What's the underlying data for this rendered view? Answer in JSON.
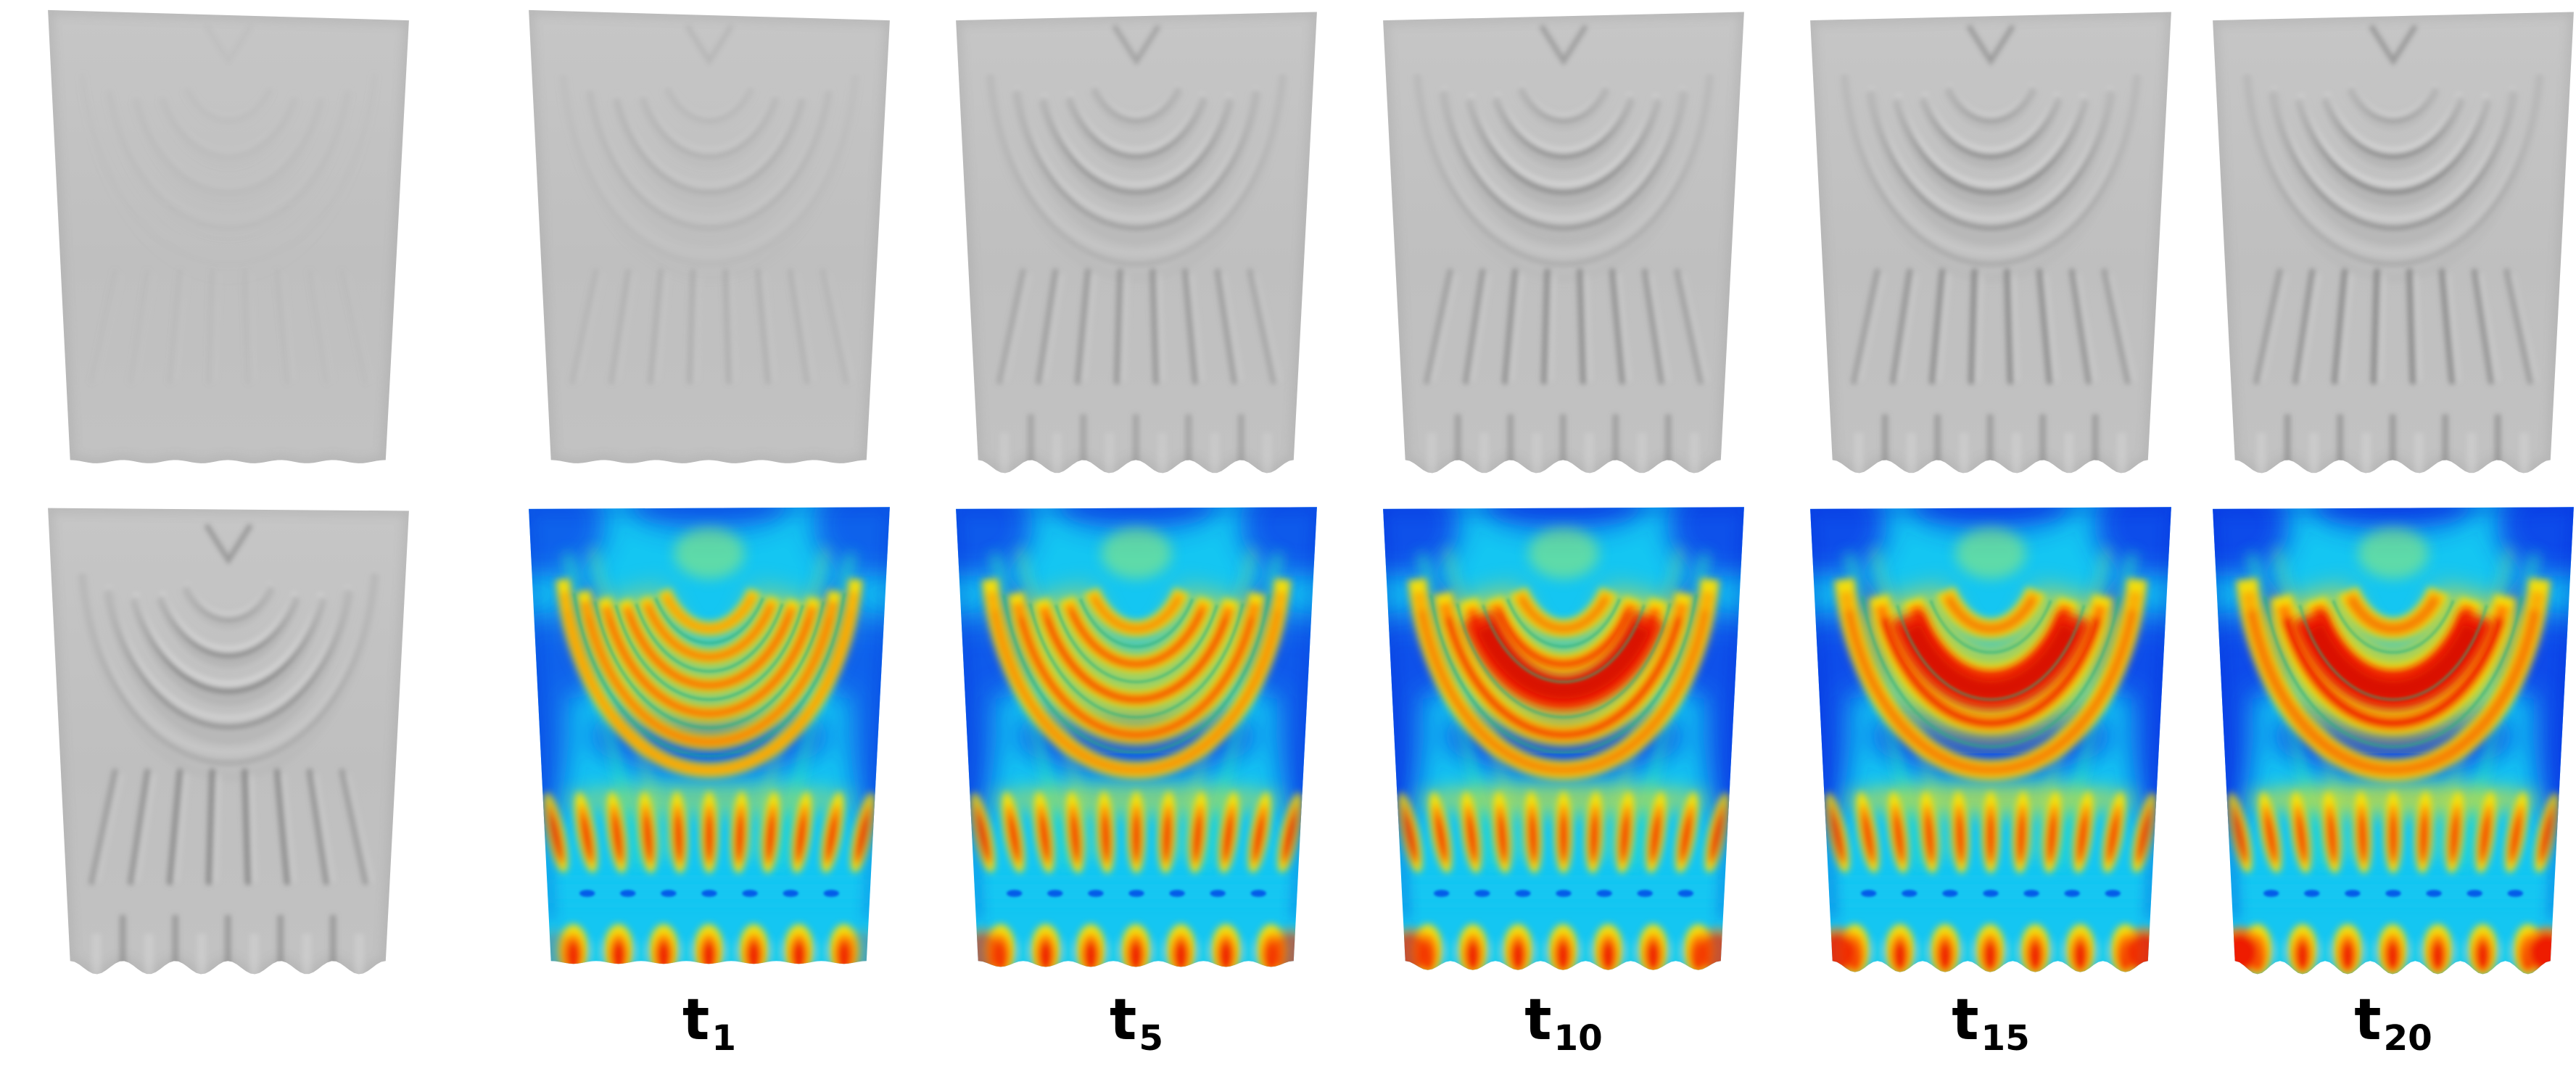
{
  "figure": {
    "background": "#ffffff",
    "kind": "cloth-simulation-comparison-figure",
    "rows": [
      {
        "name": "cloth-render-row",
        "panels": [
          {
            "id": "cloth-smooth",
            "type": "cloth",
            "col": 0,
            "wrinkle": 0.1,
            "wavy_hem": false,
            "description": "nearly smooth gray cloth with faint draped folds"
          },
          {
            "id": "cloth-light",
            "type": "cloth",
            "col": 1,
            "wrinkle": 0.3,
            "wavy_hem": false,
            "description": "gray cloth with light draped folds"
          },
          {
            "id": "cloth-medium",
            "type": "cloth",
            "col": 2,
            "wrinkle": 0.75,
            "wavy_hem": true,
            "description": "gray cloth with moderate wrinkles and wavy hem"
          },
          {
            "id": "cloth-strong",
            "type": "cloth",
            "col": 3,
            "wrinkle": 0.88,
            "wavy_hem": true,
            "description": "gray cloth with strong wrinkles and wavy hem"
          },
          {
            "id": "cloth-stronger",
            "type": "cloth",
            "col": 4,
            "wrinkle": 0.96,
            "wavy_hem": true,
            "description": "gray cloth with strong wrinkles and wavy hem"
          },
          {
            "id": "cloth-strongest",
            "type": "cloth",
            "col": 5,
            "wrinkle": 1.0,
            "wavy_hem": true,
            "description": "gray cloth with sharpest wrinkles and wavy hem"
          }
        ]
      },
      {
        "name": "heatmap-row",
        "panels": [
          {
            "id": "cloth-reference",
            "type": "cloth",
            "col": 0,
            "wrinkle": 1.0,
            "wavy_hem": true,
            "description": "reference wrinkled gray cloth"
          },
          {
            "id": "heatmap-t1",
            "type": "heatmap",
            "col": 1,
            "merge": 0.0,
            "arcs": 6,
            "red": 0.55,
            "bg": 0.3,
            "finger_red": 0.95,
            "corner": 0.15,
            "description": "jet colormap, many thin distinct arc bands"
          },
          {
            "id": "heatmap-t5",
            "type": "heatmap",
            "col": 2,
            "merge": 0.3,
            "arcs": 5,
            "red": 0.8,
            "bg": 0.45,
            "finger_red": 0.95,
            "corner": 0.45,
            "description": "jet colormap, arcs turning orange-red"
          },
          {
            "id": "heatmap-t10",
            "type": "heatmap",
            "col": 3,
            "merge": 0.6,
            "arcs": 5,
            "red": 0.9,
            "bg": 0.6,
            "finger_red": 0.9,
            "corner": 0.6,
            "description": "jet colormap, inner arcs merging into red crescent"
          },
          {
            "id": "heatmap-t15",
            "type": "heatmap",
            "col": 4,
            "merge": 0.8,
            "arcs": 4,
            "red": 0.95,
            "bg": 0.65,
            "finger_red": 0.8,
            "corner": 0.8,
            "description": "jet colormap, thick red crescent"
          },
          {
            "id": "heatmap-t20",
            "type": "heatmap",
            "col": 5,
            "merge": 1.0,
            "arcs": 4,
            "red": 1.0,
            "bg": 0.7,
            "finger_red": 0.75,
            "corner": 1.0,
            "description": "jet colormap, fully merged red crescent"
          }
        ]
      }
    ]
  },
  "labels": [
    {
      "base": "t",
      "sub": "1"
    },
    {
      "base": "t",
      "sub": "5"
    },
    {
      "base": "t",
      "sub": "10"
    },
    {
      "base": "t",
      "sub": "15"
    },
    {
      "base": "t",
      "sub": "20"
    }
  ],
  "palette": {
    "cloth_base": "#c2c2c2",
    "cloth_shadow": "#7f7f7f",
    "cloth_highlight": "#dddddd",
    "jet_deep_blue": "#0a30e8",
    "jet_blue": "#0642e6",
    "jet_cyan": "#14c6f2",
    "jet_green": "#2ee0c0",
    "jet_yellow_green": "#a8f060",
    "jet_yellow": "#ffe100",
    "jet_orange": "#ff7e00",
    "jet_red": "#ee1a00",
    "jet_dark_red": "#d40c00"
  }
}
